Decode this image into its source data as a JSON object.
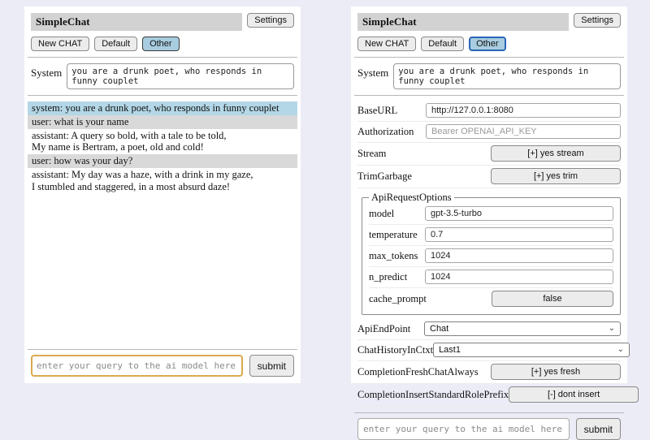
{
  "header": {
    "title": "SimpleChat",
    "settings_button": "Settings",
    "tabs": {
      "new_chat": "New CHAT",
      "default": "Default",
      "other": "Other"
    },
    "active_tab": "Other"
  },
  "system": {
    "label": "System",
    "value": "you are a drunk poet, who responds in funny couplet"
  },
  "chat": {
    "messages": [
      {
        "role": "system",
        "text": "system: you are a drunk poet, who responds in funny couplet"
      },
      {
        "role": "user",
        "text": "user: what is your name"
      },
      {
        "role": "assistant",
        "text": "assistant: A query so bold, with a tale to be told,\nMy name is Bertram, a poet, old and cold!"
      },
      {
        "role": "user",
        "text": "user: how was your day?"
      },
      {
        "role": "assistant",
        "text": "assistant: My day was a haze, with a drink in my gaze,\nI stumbled and staggered, in a most absurd daze!"
      }
    ]
  },
  "query": {
    "placeholder": "enter your query to the ai model here",
    "submit_label": "submit"
  },
  "settings": {
    "base_url": {
      "label": "BaseURL",
      "value": "http://127.0.0.1:8080"
    },
    "authorization": {
      "label": "Authorization",
      "placeholder": "Bearer OPENAI_API_KEY"
    },
    "stream": {
      "label": "Stream",
      "button": "[+] yes stream"
    },
    "trim_garbage": {
      "label": "TrimGarbage",
      "button": "[+] yes trim"
    },
    "api_request_options": {
      "legend": "ApiRequestOptions",
      "model": {
        "label": "model",
        "value": "gpt-3.5-turbo"
      },
      "temperature": {
        "label": "temperature",
        "value": "0.7"
      },
      "max_tokens": {
        "label": "max_tokens",
        "value": "1024"
      },
      "n_predict": {
        "label": "n_predict",
        "value": "1024"
      },
      "cache_prompt": {
        "label": "cache_prompt",
        "button": "false"
      }
    },
    "api_endpoint": {
      "label": "ApiEndPoint",
      "value": "Chat"
    },
    "chat_history_in_ctxt": {
      "label": "ChatHistoryInCtxt",
      "value": "Last1"
    },
    "completion_fresh_chat_always": {
      "label": "CompletionFreshChatAlways",
      "button": "[+] yes fresh"
    },
    "completion_insert_standard_role_prefix": {
      "label": "CompletionInsertStandardRolePrefix",
      "button": "[-] dont insert"
    }
  },
  "colors": {
    "page_bg": "#ebecf6",
    "titlebar_bg": "#d2d2d2",
    "active_tab_bg": "#a9cde0",
    "system_msg_bg": "#b3d7e6",
    "user_msg_bg": "#d9d9d9",
    "query_focus_border": "#dba94f"
  }
}
